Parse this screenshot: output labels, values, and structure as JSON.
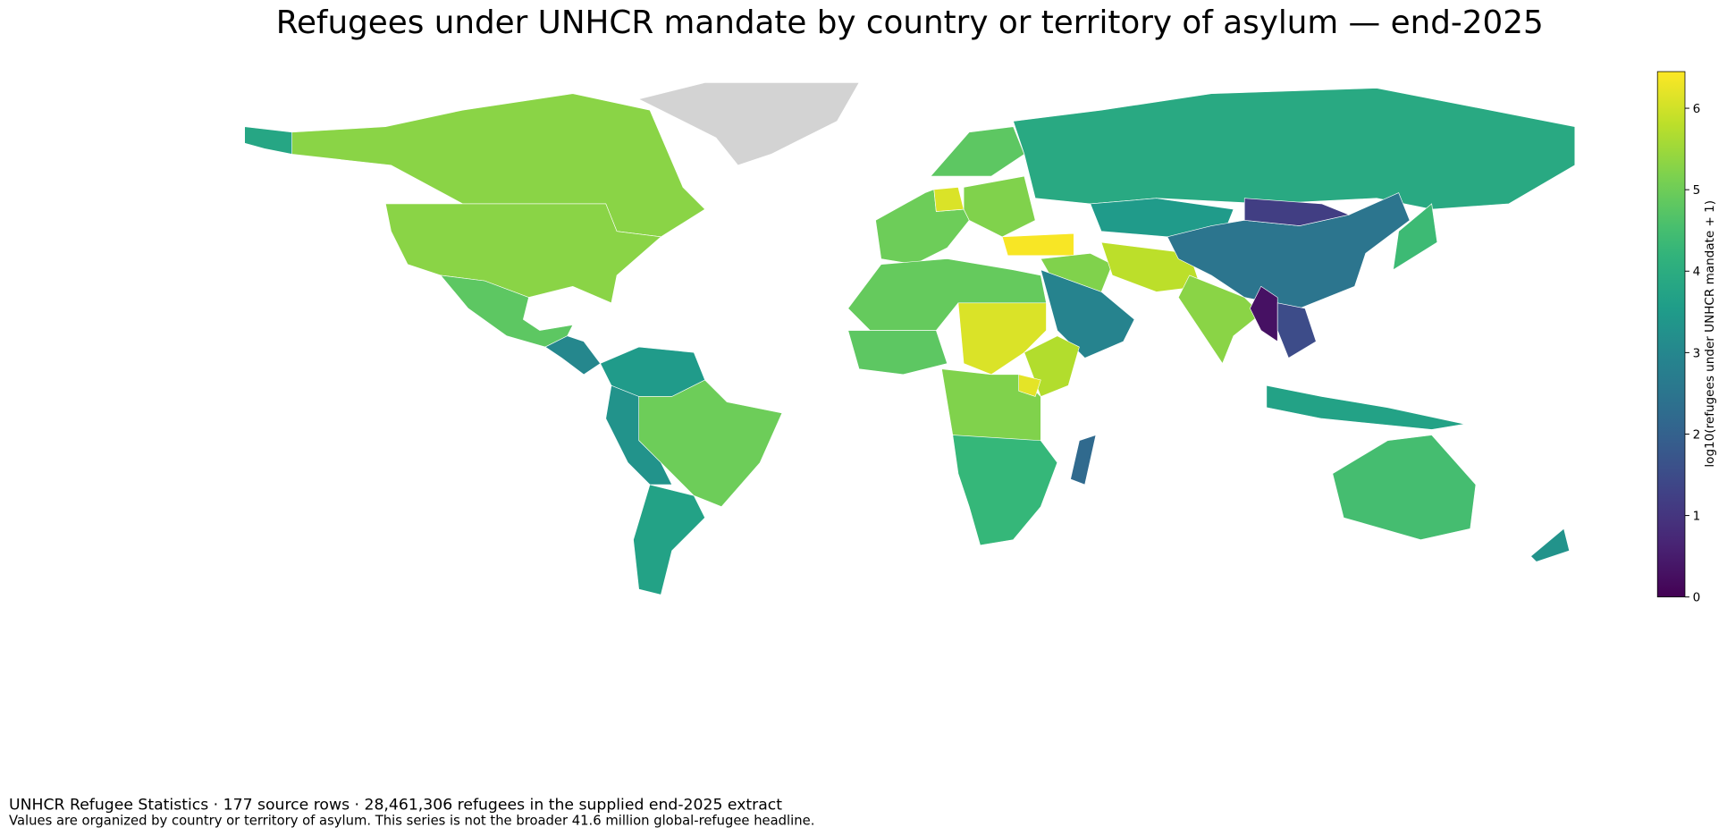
{
  "chart_data": {
    "type": "choropleth",
    "title": "Refugees under UNHCR mandate by country or territory of asylum — end-2025",
    "colorbar_label": "log10(refugees under UNHCR mandate + 1)",
    "colormap": "viridis",
    "missing_color": "#d3d3d3",
    "border_color": "#ffffff",
    "values": [
      5.3,
      3.8,
      5.3,
      4.8,
      3.0,
      null,
      3.5,
      5.0,
      3.3,
      3.7,
      5.0,
      6.1,
      4.8,
      5.2,
      3.9,
      6.4,
      5.2,
      2.9,
      5.8,
      3.5,
      2.5,
      1.2,
      5.3,
      0.3,
      1.5,
      4.4,
      3.7,
      4.5,
      3.3,
      4.9,
      4.8,
      6.1,
      5.7,
      5.2,
      6.2,
      4.3,
      2.2
    ],
    "ylim": [
      0,
      6.45
    ],
    "yticks": [
      0,
      1,
      2,
      3,
      4,
      5,
      6
    ],
    "footer": "UNHCR Refugee Statistics · 177 source rows · 28,461,306 refugees in the supplied end-2025 extract",
    "note": "Values are organized by country or territory of asylum. This series is not the broader 41.6 million global-refugee headline."
  }
}
